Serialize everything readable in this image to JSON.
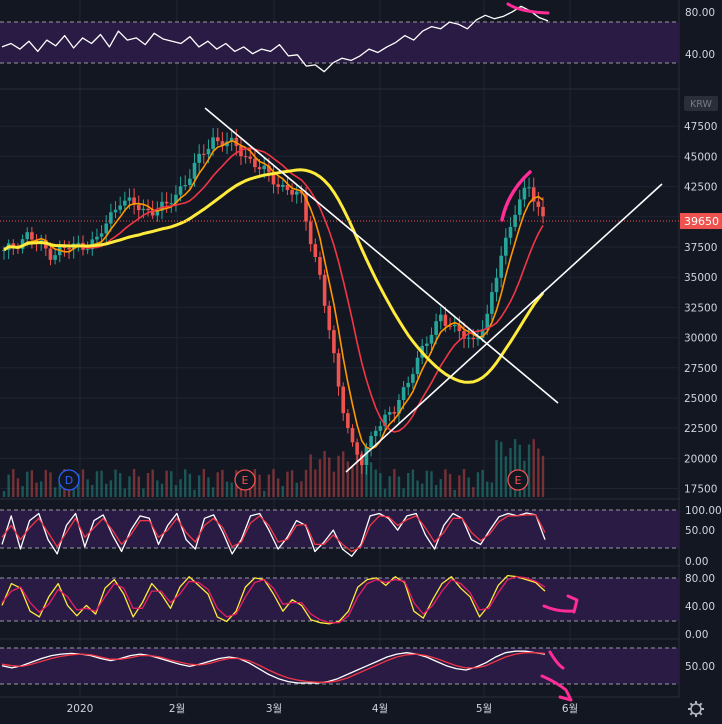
{
  "chart_data": [
    {
      "type": "line",
      "panel": "oscillator-1",
      "ylim": [
        20,
        90
      ],
      "y_ticks": [
        "80.00",
        "40.00"
      ],
      "band": [
        70,
        30
      ],
      "series": [
        {
          "color": "#ffffff",
          "values": [
            52,
            55,
            50,
            57,
            48,
            58,
            53,
            62,
            51,
            60,
            55,
            63,
            52,
            66,
            58,
            60,
            54,
            64,
            59,
            57,
            55,
            61,
            52,
            57,
            50,
            55,
            48,
            52,
            46,
            50,
            48,
            54,
            44,
            45,
            35,
            36,
            30,
            38,
            42,
            40,
            44,
            50,
            47,
            52,
            56,
            62,
            58,
            66,
            70,
            68,
            74,
            72,
            68,
            76,
            80,
            77,
            79,
            83,
            88,
            84,
            78,
            75
          ]
        }
      ]
    },
    {
      "type": "candlestick",
      "panel": "price",
      "currency": "KRW",
      "ylim": [
        16800,
        50500
      ],
      "y_ticks": [
        "47500",
        "45000",
        "42500",
        "40000",
        "37500",
        "35000",
        "32500",
        "30000",
        "27500",
        "25000",
        "22500",
        "20000",
        "17500"
      ],
      "current_price": "39650",
      "x_labels": [
        "2020",
        "2월",
        "3월",
        "4월",
        "5월",
        "6월"
      ],
      "event_markers": [
        "D",
        "E",
        "E"
      ],
      "anchors": [
        [
          0,
          37000
        ],
        [
          5,
          38500
        ],
        [
          10,
          37000
        ],
        [
          15,
          37500
        ],
        [
          20,
          38000
        ],
        [
          25,
          41500
        ],
        [
          30,
          40500
        ],
        [
          35,
          40800
        ],
        [
          40,
          43500
        ],
        [
          45,
          46500
        ],
        [
          50,
          45800
        ],
        [
          55,
          44000
        ],
        [
          60,
          42500
        ],
        [
          64,
          41500
        ],
        [
          68,
          35000
        ],
        [
          72,
          26000
        ],
        [
          75,
          21000
        ],
        [
          77,
          19500
        ],
        [
          80,
          22800
        ],
        [
          84,
          23800
        ],
        [
          88,
          27500
        ],
        [
          91,
          29500
        ],
        [
          94,
          32000
        ],
        [
          97,
          30500
        ],
        [
          101,
          29800
        ],
        [
          104,
          31500
        ],
        [
          107,
          37000
        ],
        [
          110,
          40500
        ],
        [
          113,
          42500
        ],
        [
          116,
          40000
        ]
      ],
      "series": [
        {
          "name": "",
          "type": "sma",
          "color": "#ff9800",
          "period": 5
        },
        {
          "name": "",
          "type": "sma",
          "color": "#f23645",
          "period": 12
        },
        {
          "name": "",
          "type": "sma",
          "color": "#ffeb3b",
          "period": 30
        }
      ]
    },
    {
      "type": "line",
      "panel": "oscillator-2",
      "ylim": [
        -5,
        115
      ],
      "y_ticks": [
        "100.00",
        "50.00",
        "0.00"
      ],
      "band": [
        80,
        20
      ],
      "series": [
        {
          "color": "#ffffff",
          "values": [
            30,
            90,
            20,
            80,
            95,
            40,
            10,
            70,
            95,
            25,
            80,
            92,
            50,
            15,
            60,
            90,
            85,
            30,
            70,
            95,
            40,
            20,
            85,
            92,
            55,
            10,
            40,
            90,
            95,
            60,
            20,
            45,
            80,
            70,
            15,
            35,
            60,
            20,
            5,
            30,
            90,
            95,
            85,
            60,
            90,
            95,
            50,
            20,
            70,
            95,
            85,
            40,
            30,
            60,
            88,
            95,
            90,
            96,
            92,
            40
          ]
        },
        {
          "color": "#f23645",
          "values": [
            45,
            70,
            40,
            65,
            85,
            55,
            25,
            55,
            85,
            45,
            65,
            85,
            60,
            30,
            50,
            80,
            80,
            45,
            60,
            85,
            55,
            35,
            70,
            85,
            65,
            25,
            35,
            75,
            90,
            70,
            35,
            40,
            70,
            72,
            30,
            30,
            50,
            30,
            15,
            25,
            70,
            90,
            88,
            70,
            82,
            90,
            65,
            35,
            55,
            85,
            85,
            55,
            38,
            52,
            78,
            90,
            90,
            92,
            92,
            55
          ]
        }
      ]
    },
    {
      "type": "line",
      "panel": "oscillator-3",
      "ylim": [
        -8,
        100
      ],
      "y_ticks": [
        "80.00",
        "40.00",
        "0.00"
      ],
      "band": [
        80,
        20
      ],
      "series": [
        {
          "color": "#ffeb3b",
          "values": [
            40,
            78,
            70,
            30,
            20,
            55,
            78,
            40,
            22,
            40,
            25,
            70,
            85,
            60,
            20,
            45,
            78,
            60,
            35,
            72,
            90,
            75,
            60,
            20,
            12,
            30,
            72,
            88,
            85,
            60,
            30,
            50,
            40,
            15,
            10,
            8,
            12,
            30,
            72,
            85,
            88,
            75,
            90,
            80,
            30,
            18,
            50,
            78,
            90,
            70,
            55,
            20,
            40,
            75,
            92,
            90,
            85,
            80,
            65
          ]
        },
        {
          "color": "#e91e63",
          "values": [
            45,
            65,
            72,
            45,
            28,
            42,
            68,
            55,
            32,
            35,
            30,
            55,
            78,
            70,
            35,
            35,
            65,
            65,
            45,
            60,
            82,
            80,
            68,
            35,
            20,
            25,
            55,
            80,
            85,
            70,
            42,
            45,
            45,
            25,
            15,
            10,
            10,
            22,
            55,
            78,
            85,
            80,
            85,
            82,
            45,
            25,
            40,
            65,
            85,
            78,
            62,
            32,
            35,
            62,
            85,
            90,
            88,
            82,
            72
          ]
        }
      ]
    },
    {
      "type": "line",
      "panel": "oscillator-4",
      "ylim": [
        15,
        80
      ],
      "y_ticks": [
        "50.00"
      ],
      "band": [
        65,
        30
      ],
      "series": [
        {
          "color": "#ffffff",
          "values": [
            50,
            47,
            50,
            55,
            60,
            64,
            66,
            67,
            66,
            64,
            60,
            57,
            60,
            64,
            66,
            64,
            60,
            56,
            52,
            49,
            52,
            56,
            60,
            62,
            60,
            54,
            46,
            38,
            32,
            28,
            26,
            26,
            26,
            28,
            32,
            38,
            44,
            50,
            56,
            62,
            66,
            68,
            66,
            62,
            56,
            50,
            46,
            44,
            48,
            54,
            62,
            68,
            70,
            70,
            68,
            66
          ]
        },
        {
          "color": "#f23645",
          "values": [
            52,
            50,
            49,
            52,
            56,
            60,
            63,
            65,
            66,
            65,
            62,
            59,
            59,
            61,
            64,
            64,
            62,
            58,
            55,
            52,
            51,
            53,
            57,
            60,
            60,
            57,
            51,
            44,
            38,
            33,
            30,
            28,
            27,
            27,
            29,
            33,
            39,
            45,
            51,
            57,
            62,
            65,
            66,
            64,
            60,
            55,
            50,
            47,
            47,
            50,
            56,
            62,
            66,
            68,
            68,
            67
          ]
        }
      ]
    }
  ]
}
